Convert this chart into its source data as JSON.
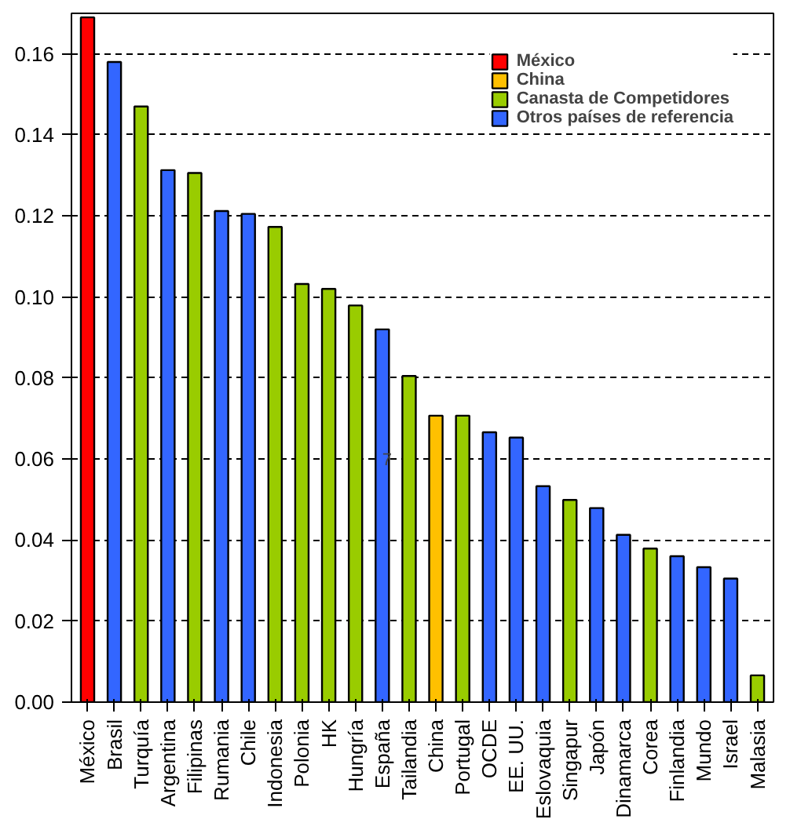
{
  "chart_data": {
    "type": "bar",
    "categories": [
      "México",
      "Brasil",
      "Turquía",
      "Argentina",
      "Filipinas",
      "Rumania",
      "Chile",
      "Indonesia",
      "Polonia",
      "HK",
      "Hungría",
      "España",
      "Tailandia",
      "China",
      "Portugal",
      "OCDE",
      "EE. UU.",
      "Eslovaquia",
      "Singapur",
      "Japón",
      "Dinamarca",
      "Corea",
      "Finlandia",
      "Mundo",
      "Israel",
      "Malasia"
    ],
    "series": [
      {
        "name": "México",
        "color": "#ff0000",
        "values": [
          0.169,
          null,
          null,
          null,
          null,
          null,
          null,
          null,
          null,
          null,
          null,
          null,
          null,
          null,
          null,
          null,
          null,
          null,
          null,
          null,
          null,
          null,
          null,
          null,
          null,
          null
        ]
      },
      {
        "name": "China",
        "color": "#ffc000",
        "values": [
          null,
          null,
          null,
          null,
          null,
          null,
          null,
          null,
          null,
          null,
          null,
          null,
          null,
          0.0707,
          null,
          null,
          null,
          null,
          null,
          null,
          null,
          null,
          null,
          null,
          null,
          null
        ]
      },
      {
        "name": "Canasta de Competidores",
        "color": "#99cc00",
        "values": [
          null,
          null,
          0.147,
          null,
          0.1306,
          null,
          null,
          0.1173,
          0.1032,
          0.102,
          0.0979,
          null,
          0.0805,
          null,
          0.0707,
          null,
          null,
          null,
          0.0499,
          null,
          null,
          0.0379,
          null,
          null,
          null,
          0.0066
        ]
      },
      {
        "name": "Otros países de referencia",
        "color": "#3366ff",
        "values": [
          null,
          0.158,
          null,
          0.1313,
          null,
          0.1212,
          0.1205,
          null,
          null,
          null,
          null,
          0.092,
          null,
          null,
          null,
          0.0666,
          0.0653,
          0.0533,
          null,
          0.0479,
          0.0413,
          null,
          0.036,
          0.0333,
          0.0305,
          null
        ]
      }
    ],
    "ylim": [
      0,
      0.17
    ],
    "yticks": [
      {
        "value": 0,
        "label": "0.00"
      },
      {
        "value": 0.02,
        "label": "0.02"
      },
      {
        "value": 0.04,
        "label": "0.04"
      },
      {
        "value": 0.06,
        "label": "0.06"
      },
      {
        "value": 0.08,
        "label": "0.08"
      },
      {
        "value": 0.1,
        "label": "0.10"
      },
      {
        "value": 0.12,
        "label": "0.12"
      },
      {
        "value": 0.14,
        "label": "0.14"
      },
      {
        "value": 0.16,
        "label": "0.16"
      }
    ],
    "grid": "y",
    "line_style": "dashed",
    "legend": "top right",
    "annotations": [
      {
        "text": "7",
        "x": "España",
        "y": 0.06
      }
    ]
  }
}
